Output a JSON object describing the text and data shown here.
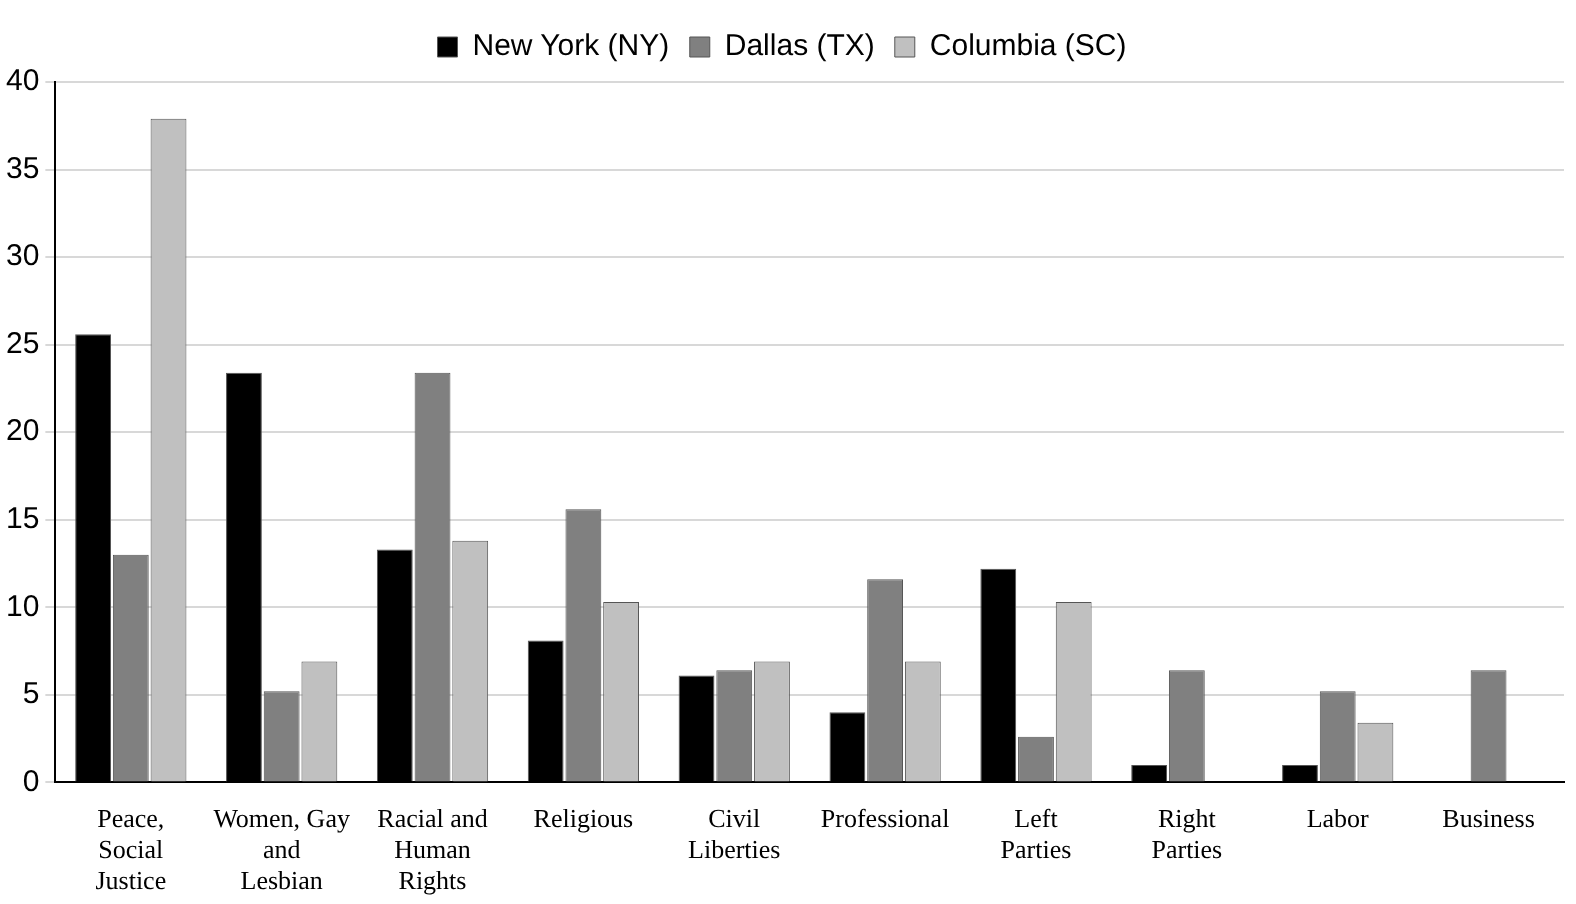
{
  "chart_data": {
    "type": "bar",
    "categories": [
      "Peace, Social Justice",
      "Women, Gay and Lesbian",
      "Racial and Human Rights",
      "Religious",
      "Civil Liberties",
      "Professional",
      "Left Parties",
      "Right Parties",
      "Labor",
      "Business"
    ],
    "series": [
      {
        "name": "New York (NY)",
        "color": "#000000",
        "values": [
          25.6,
          23.4,
          13.3,
          8.1,
          6.1,
          4.0,
          12.2,
          1.0,
          1.0,
          0
        ]
      },
      {
        "name": "Dallas (TX)",
        "color": "#808080",
        "values": [
          13.0,
          5.2,
          23.4,
          15.6,
          6.4,
          11.6,
          2.6,
          6.4,
          5.2,
          6.4
        ]
      },
      {
        "name": "Columbia (SC)",
        "color": "#c0c0c0",
        "values": [
          37.9,
          6.9,
          13.8,
          10.3,
          6.9,
          6.9,
          10.3,
          0,
          3.4,
          0
        ]
      }
    ],
    "ylim": [
      0,
      40
    ],
    "yticks": [
      0,
      5,
      10,
      15,
      20,
      25,
      30,
      35,
      40
    ],
    "grid": "y",
    "legend": "top"
  }
}
